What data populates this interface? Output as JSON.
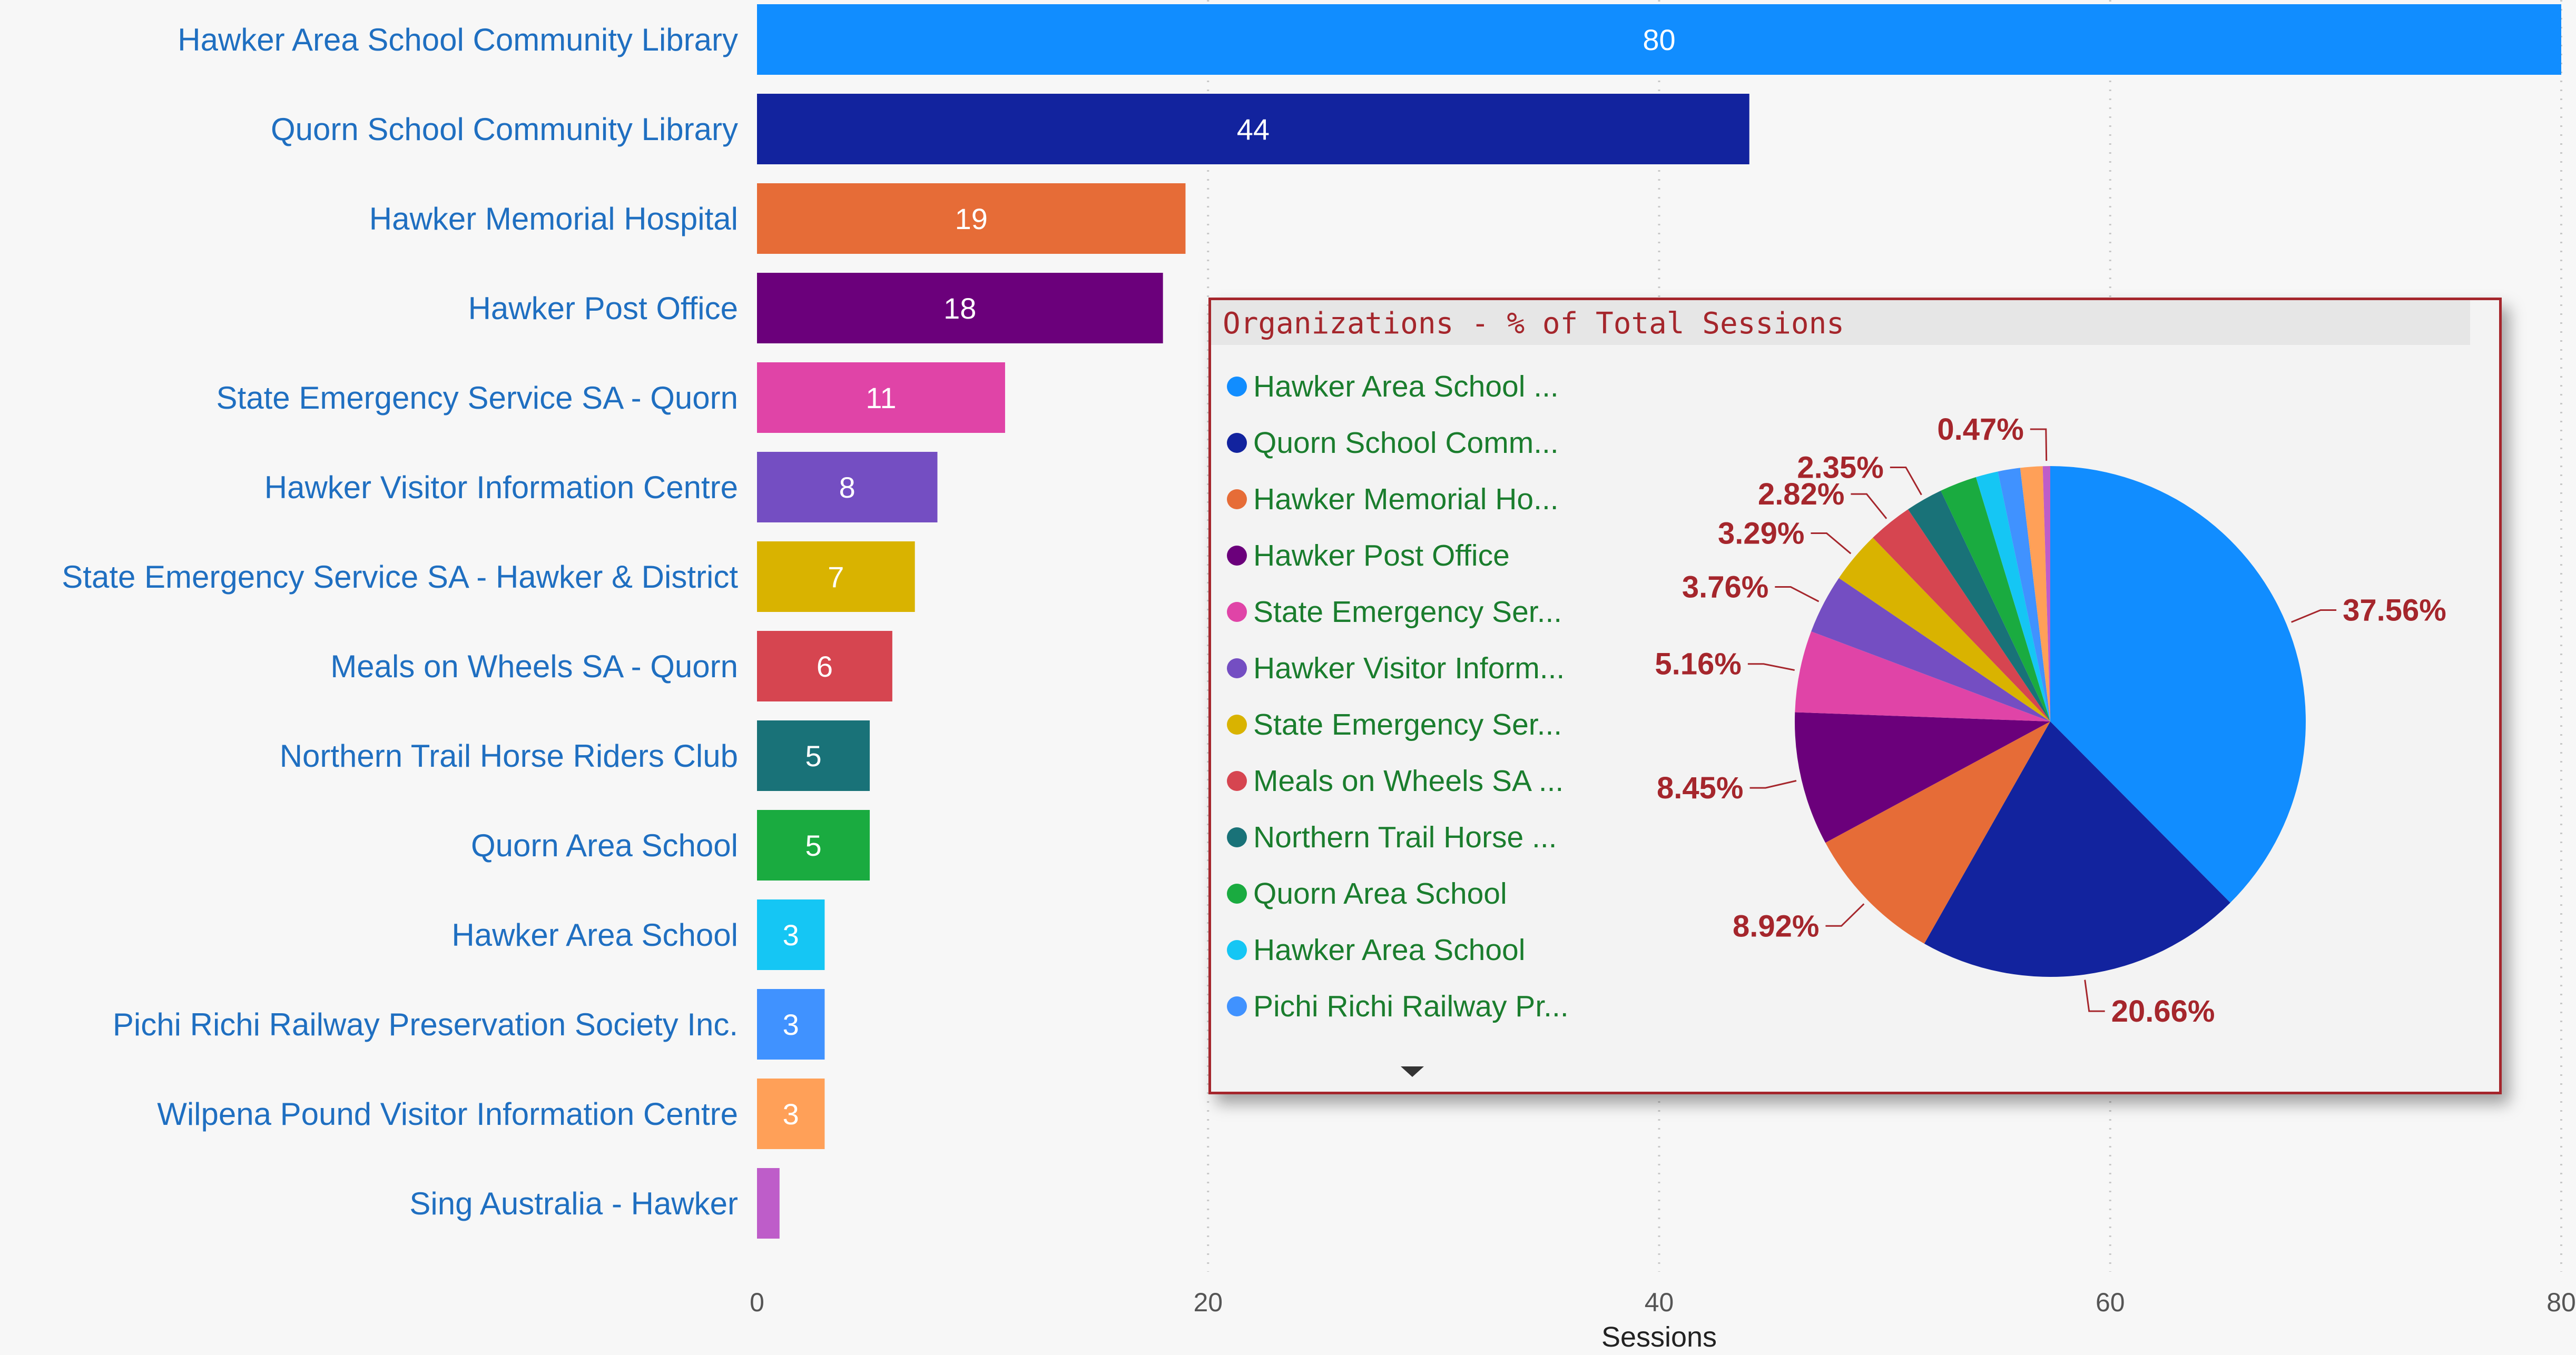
{
  "chart_data": [
    {
      "type": "bar",
      "orientation": "horizontal",
      "categories": [
        "Hawker Area School Community Library",
        "Quorn School Community Library",
        "Hawker Memorial Hospital",
        "Hawker Post Office",
        "State Emergency Service SA - Quorn",
        "Hawker Visitor Information Centre",
        "State Emergency Service SA - Hawker & District",
        "Meals on Wheels SA - Quorn",
        "Northern Trail Horse Riders Club",
        "Quorn Area School",
        "Hawker Area School",
        "Pichi Richi Railway Preservation Society Inc.",
        "Wilpena Pound Visitor Information Centre",
        "Sing Australia - Hawker"
      ],
      "values": [
        80,
        44,
        19,
        18,
        11,
        8,
        7,
        6,
        5,
        5,
        3,
        3,
        3,
        1
      ],
      "value_labels": [
        "80",
        "44",
        "19",
        "18",
        "11",
        "8",
        "7",
        "6",
        "5",
        "5",
        "3",
        "3",
        "3",
        ""
      ],
      "colors": [
        "#118dff",
        "#12239e",
        "#e66c37",
        "#6b007b",
        "#e044a7",
        "#744ec2",
        "#d9b300",
        "#d64550",
        "#197278",
        "#1aab40",
        "#15c6f4",
        "#4092ff",
        "#ffa058",
        "#be5dc9"
      ],
      "xlabel": "Sessions",
      "ylabel": "",
      "xlim": [
        0,
        80
      ],
      "xticks": [
        "0",
        "20",
        "40",
        "60",
        "80"
      ],
      "grid": true
    },
    {
      "type": "pie",
      "title": "Organizations - % of Total Sessions",
      "legend": [
        "Hawker Area School ...",
        "Quorn School Comm...",
        "Hawker Memorial Ho...",
        "Hawker Post Office",
        "State Emergency Ser...",
        "Hawker Visitor Inform...",
        "State Emergency Ser...",
        "Meals on Wheels SA ...",
        "Northern Trail Horse ...",
        "Quorn Area School",
        "Hawker Area School",
        "Pichi Richi Railway Pr..."
      ],
      "legend_placement": "left",
      "values": [
        37.56,
        20.66,
        8.92,
        8.45,
        5.16,
        3.76,
        3.29,
        2.82,
        2.35,
        2.35,
        1.41,
        1.41,
        1.41,
        0.47
      ],
      "slice_labels": [
        "37.56%",
        "20.66%",
        "8.92%",
        "8.45%",
        "5.16%",
        "3.76%",
        "3.29%",
        "2.82%",
        "2.35%",
        "",
        "",
        "",
        "",
        "0.47%"
      ],
      "colors": [
        "#118dff",
        "#12239e",
        "#e66c37",
        "#6b007b",
        "#e044a7",
        "#744ec2",
        "#d9b300",
        "#d64550",
        "#197278",
        "#1aab40",
        "#15c6f4",
        "#4092ff",
        "#ffa058",
        "#be5dc9"
      ]
    }
  ]
}
